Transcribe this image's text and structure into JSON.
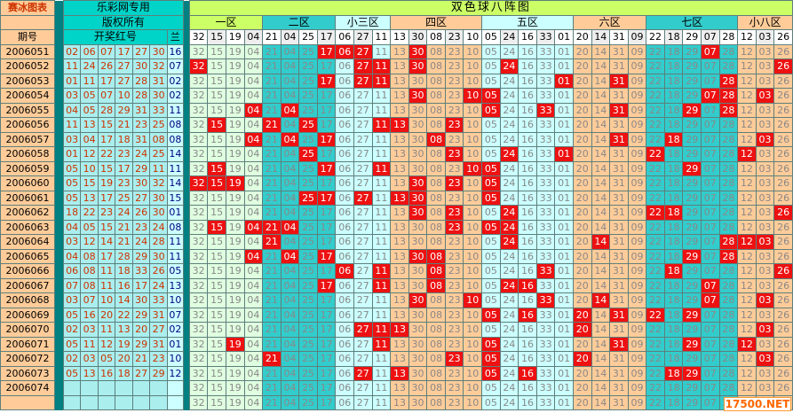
{
  "header": {
    "brand": "赛冰图表",
    "site": "乐彩网专用",
    "copyright": "版权所有",
    "title": "双色球八阵图",
    "period_label": "期号",
    "red_label": "开奖红号",
    "blue_label": "兰"
  },
  "zones": [
    {
      "label": "一区",
      "numbers": [
        "32",
        "15",
        "19",
        "04"
      ]
    },
    {
      "label": "二区",
      "numbers": [
        "21",
        "04",
        "25",
        "17"
      ]
    },
    {
      "label": "小三区",
      "numbers": [
        "06",
        "27",
        "11"
      ]
    },
    {
      "label": "四区",
      "numbers": [
        "13",
        "30",
        "08",
        "23",
        "10"
      ]
    },
    {
      "label": "五区",
      "numbers": [
        "05",
        "24",
        "16",
        "33",
        "01"
      ]
    },
    {
      "label": "六区",
      "numbers": [
        "20",
        "14",
        "31",
        "09"
      ]
    },
    {
      "label": "七区",
      "numbers": [
        "22",
        "18",
        "29",
        "07",
        "28"
      ]
    },
    {
      "label": "小八区",
      "numbers": [
        "12",
        "03",
        "26"
      ]
    }
  ],
  "rows": [
    {
      "period": "2006051",
      "reds": [
        "02",
        "06",
        "07",
        "17",
        "27",
        "30"
      ],
      "blue": "16"
    },
    {
      "period": "2006052",
      "reds": [
        "11",
        "24",
        "26",
        "27",
        "30",
        "32"
      ],
      "blue": "07"
    },
    {
      "period": "2006053",
      "reds": [
        "01",
        "11",
        "17",
        "27",
        "28",
        "31"
      ],
      "blue": "02"
    },
    {
      "period": "2006054",
      "reds": [
        "03",
        "05",
        "07",
        "10",
        "28",
        "30"
      ],
      "blue": "02"
    },
    {
      "period": "2006055",
      "reds": [
        "04",
        "05",
        "28",
        "29",
        "31",
        "33"
      ],
      "blue": "11"
    },
    {
      "period": "2006056",
      "reds": [
        "11",
        "13",
        "15",
        "21",
        "23",
        "25"
      ],
      "blue": "08"
    },
    {
      "period": "2006057",
      "reds": [
        "03",
        "04",
        "17",
        "18",
        "31",
        "08"
      ],
      "blue": "08"
    },
    {
      "period": "2006058",
      "reds": [
        "01",
        "12",
        "22",
        "23",
        "24",
        "25"
      ],
      "blue": "14"
    },
    {
      "period": "2006059",
      "reds": [
        "05",
        "10",
        "15",
        "17",
        "29",
        "11"
      ],
      "blue": "11"
    },
    {
      "period": "2006060",
      "reds": [
        "05",
        "15",
        "19",
        "23",
        "30",
        "32"
      ],
      "blue": "14"
    },
    {
      "period": "2006061",
      "reds": [
        "05",
        "13",
        "17",
        "25",
        "27",
        "30"
      ],
      "blue": "15"
    },
    {
      "period": "2006062",
      "reds": [
        "18",
        "22",
        "23",
        "24",
        "26",
        "30"
      ],
      "blue": "01"
    },
    {
      "period": "2006063",
      "reds": [
        "04",
        "05",
        "15",
        "21",
        "23",
        "24"
      ],
      "blue": "08"
    },
    {
      "period": "2006064",
      "reds": [
        "03",
        "12",
        "14",
        "21",
        "24",
        "28"
      ],
      "blue": "11"
    },
    {
      "period": "2006065",
      "reds": [
        "04",
        "08",
        "17",
        "28",
        "29",
        "30"
      ],
      "blue": "11"
    },
    {
      "period": "2006066",
      "reds": [
        "06",
        "08",
        "11",
        "18",
        "33",
        "26"
      ],
      "blue": "05"
    },
    {
      "period": "2006067",
      "reds": [
        "07",
        "08",
        "11",
        "16",
        "17",
        "24"
      ],
      "blue": "13"
    },
    {
      "period": "2006068",
      "reds": [
        "03",
        "07",
        "10",
        "14",
        "30",
        "33"
      ],
      "blue": "10"
    },
    {
      "period": "2006069",
      "reds": [
        "05",
        "16",
        "20",
        "22",
        "29",
        "31"
      ],
      "blue": "07"
    },
    {
      "period": "2006070",
      "reds": [
        "02",
        "03",
        "11",
        "13",
        "20",
        "27"
      ],
      "blue": "02"
    },
    {
      "period": "2006071",
      "reds": [
        "05",
        "11",
        "12",
        "19",
        "29",
        "31"
      ],
      "blue": "01"
    },
    {
      "period": "2006072",
      "reds": [
        "02",
        "03",
        "05",
        "20",
        "21",
        "23"
      ],
      "blue": "10"
    },
    {
      "period": "2006073",
      "reds": [
        "05",
        "13",
        "16",
        "18",
        "27",
        "29"
      ],
      "blue": "12"
    },
    {
      "period": "2006074",
      "reds": [
        "",
        "",
        "",
        "",
        "",
        ""
      ],
      "blue": ""
    },
    {
      "period": "",
      "reds": [
        "",
        "",
        "",
        "",
        "",
        ""
      ],
      "blue": ""
    }
  ],
  "watermark": "17500.NET"
}
